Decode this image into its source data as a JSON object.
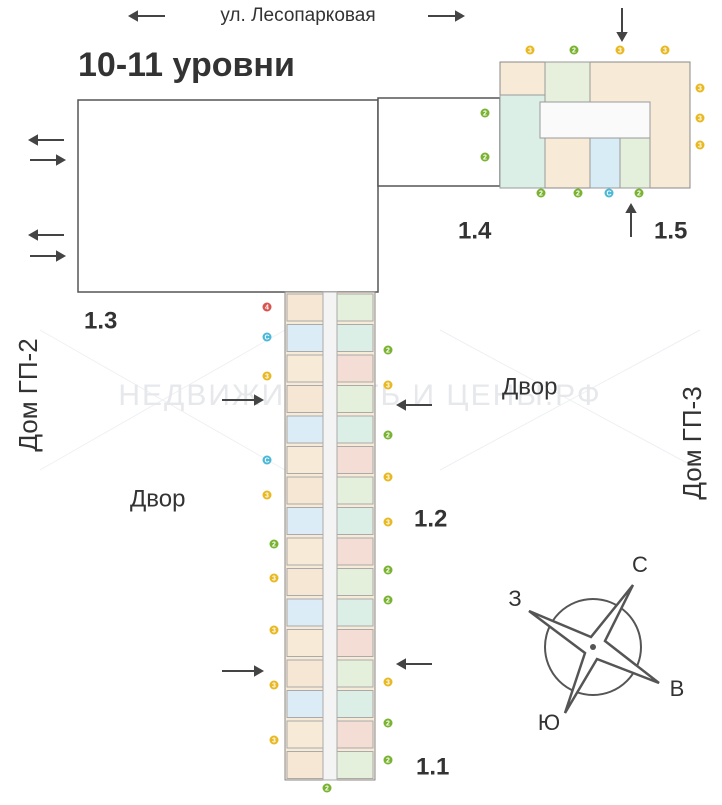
{
  "header": {
    "street": "ул. Лесопарковая",
    "title": "10-11 уровни"
  },
  "sections": [
    "1.3",
    "1.4",
    "1.5",
    "1.2",
    "1.1"
  ],
  "neighbors": [
    "Дом ГП-2",
    "Дом ГП-3"
  ],
  "yards": [
    "Двор",
    "Двор"
  ],
  "compass": {
    "north": "С",
    "west": "З",
    "east": "В",
    "south": "Ю"
  },
  "watermark": "НЕДВИЖИМОСТЬ И ЦЕНЫ.РФ",
  "apartments": [
    "3",
    "2",
    "3",
    "3",
    "2",
    "2",
    "3",
    "3",
    "3",
    "2",
    "2",
    "С",
    "2",
    "4",
    "С",
    "3",
    "С",
    "3",
    "2",
    "3",
    "3",
    "3",
    "3",
    "2",
    "3",
    "2",
    "3",
    "3",
    "2",
    "2",
    "3",
    "2",
    "2",
    "2"
  ]
}
